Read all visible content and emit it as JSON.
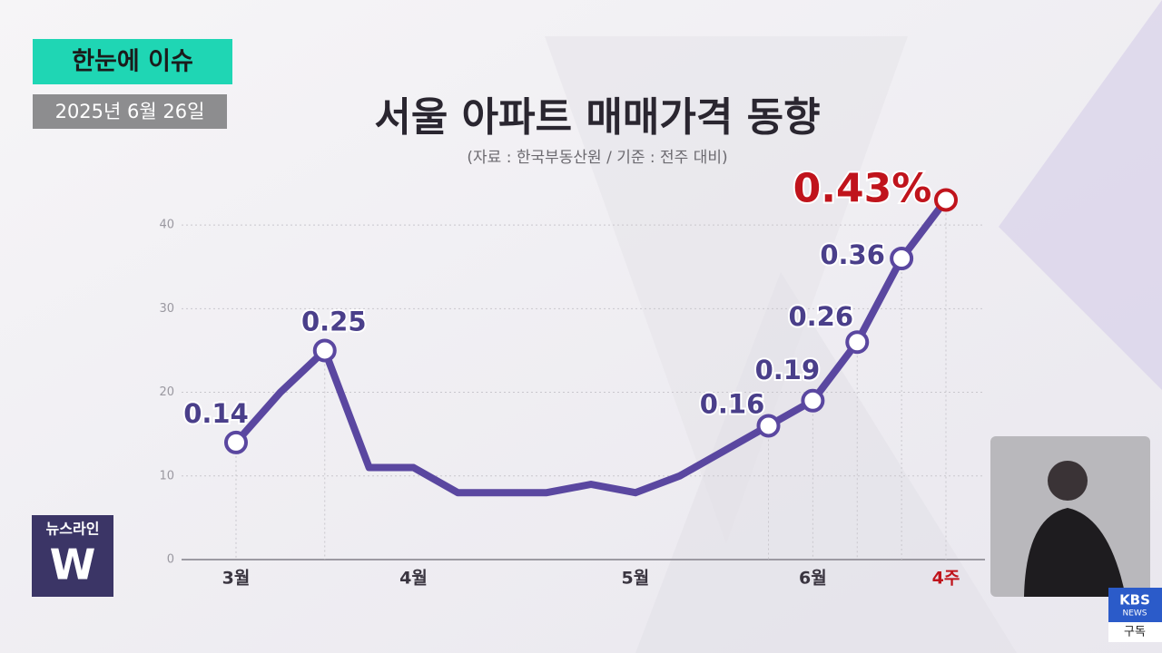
{
  "page": {
    "badge": "한눈에 이슈",
    "date": "2025년 6월 26일",
    "logo": "뉴스라인",
    "logo_mark": "W",
    "broadcaster": "KBS",
    "broadcaster_sub": "NEWS",
    "subscribe": "구독"
  },
  "chart_data": {
    "type": "line",
    "title": "서울 아파트 매매가격 동향",
    "subtitle": "(자료 : 한국부동산원 / 기준 : 전주 대비)",
    "categories": [
      "3월",
      null,
      null,
      null,
      "4월",
      null,
      null,
      null,
      null,
      "5월",
      null,
      null,
      null,
      "6월",
      null,
      null,
      "4주"
    ],
    "series": [
      {
        "name": "서울 아파트 매매가격",
        "color": "#5a47a0",
        "values": [
          14,
          20,
          25,
          11,
          11,
          8,
          8,
          8,
          9,
          8,
          10,
          13,
          16,
          19,
          26,
          36,
          43
        ],
        "value_labels": [
          "0.14",
          null,
          "0.25",
          null,
          null,
          null,
          null,
          null,
          null,
          null,
          null,
          null,
          "0.16",
          "0.19",
          "0.26",
          "0.36",
          "0.43%"
        ]
      }
    ],
    "ylim": [
      0,
      45
    ],
    "yticks": [
      0,
      10,
      20,
      30,
      40
    ],
    "grid": true,
    "highlight_color": "#c0141c"
  }
}
